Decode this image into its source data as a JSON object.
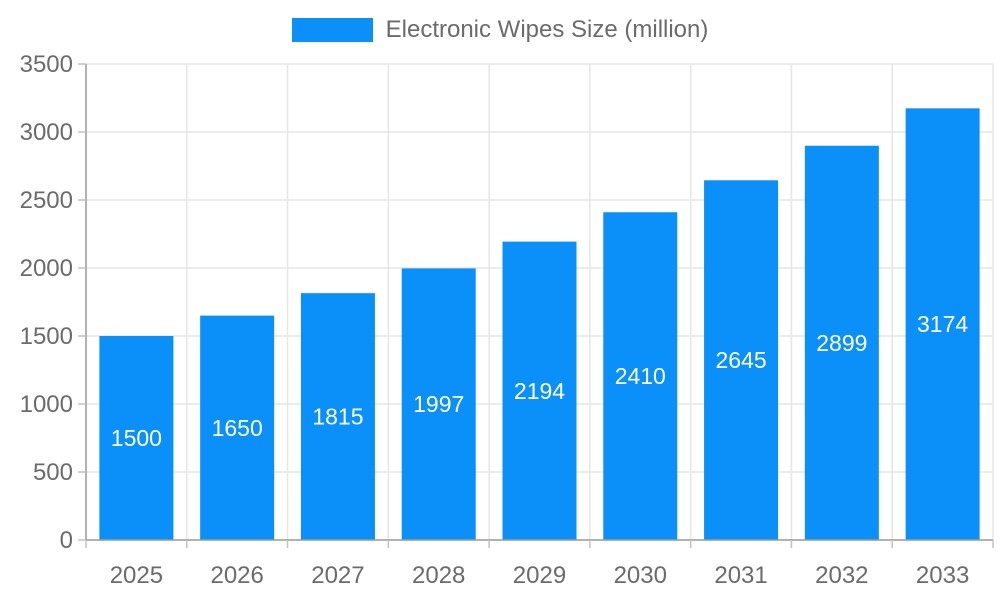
{
  "chart_data": {
    "type": "bar",
    "title": "Electronic Wipes Size (million)",
    "legend": "Electronic Wipes Size (million)",
    "categories": [
      "2025",
      "2026",
      "2027",
      "2028",
      "2029",
      "2030",
      "2031",
      "2032",
      "2033"
    ],
    "values": [
      1500,
      1650,
      1815,
      1997,
      2194,
      2410,
      2645,
      2899,
      3174
    ],
    "xlabel": "",
    "ylabel": "",
    "ylim": [
      0,
      3500
    ],
    "ytick_step": 500,
    "yticks": [
      0,
      500,
      1000,
      1500,
      2000,
      2500,
      3000,
      3500
    ],
    "grid": true,
    "legend_position": "top-center",
    "value_labels_inside_bars": true,
    "colors": {
      "bar": "#0a90f8",
      "bar_value_label": "#ffffff",
      "axis_text": "#6b6b6b",
      "legend_text": "#6b6b6b",
      "grid_line": "#e6e6e6",
      "axis_line": "#999999",
      "tick_mark": "#c2c2c2",
      "background": "#ffffff"
    }
  }
}
